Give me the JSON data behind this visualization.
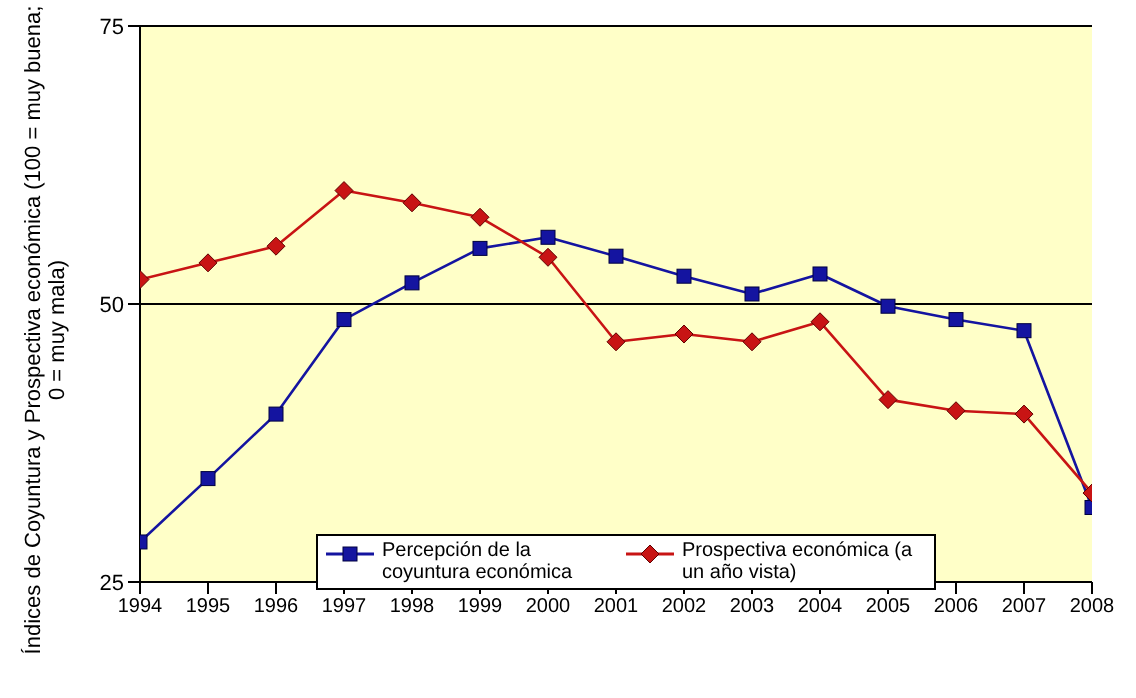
{
  "chart_data": {
    "type": "line",
    "ylabel": "Índices de Coyuntura y Prospectiva económica (100 = muy buena; 0 = muy mala)",
    "x": [
      1994,
      1995,
      1996,
      1997,
      1998,
      1999,
      2000,
      2001,
      2002,
      2003,
      2004,
      2005,
      2006,
      2007,
      2008
    ],
    "xlim": [
      1994,
      2008
    ],
    "xticks": [
      1994,
      1995,
      1996,
      1997,
      1998,
      1999,
      2000,
      2001,
      2002,
      2003,
      2004,
      2005,
      2006,
      2007,
      2008
    ],
    "ylim": [
      25,
      75
    ],
    "yticks": [
      25,
      50,
      75
    ],
    "grid": "y",
    "legend": "bottom",
    "series": [
      {
        "name": "Percepción de la coyuntura económica",
        "color": "#1414a0",
        "marker": "square",
        "values": [
          28.6,
          34.3,
          40.1,
          48.6,
          51.9,
          55.0,
          56.0,
          54.3,
          52.5,
          50.9,
          52.7,
          49.8,
          48.6,
          47.6,
          31.7
        ]
      },
      {
        "name": "Prospectiva económica (a un año vista)",
        "color": "#c81414",
        "marker": "diamond",
        "values": [
          52.2,
          53.7,
          55.2,
          60.2,
          59.1,
          57.8,
          54.2,
          46.6,
          47.3,
          46.6,
          48.4,
          41.4,
          40.4,
          40.1,
          33.0
        ]
      }
    ]
  }
}
